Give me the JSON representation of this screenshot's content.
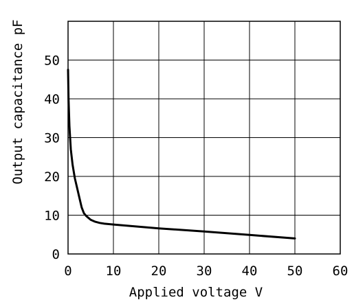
{
  "chart_data": {
    "type": "line",
    "title": "",
    "xlabel": "Applied voltage V",
    "ylabel": "Output capacitance pF",
    "xlim": [
      0,
      60
    ],
    "ylim": [
      0,
      60
    ],
    "grid": true,
    "legend": "none",
    "x_ticks": [
      "0",
      "10",
      "20",
      "30",
      "40",
      "50",
      "60"
    ],
    "y_ticks": [
      "0",
      "10",
      "20",
      "30",
      "40",
      "50"
    ],
    "series": [
      {
        "color": "#000000",
        "x": [
          0,
          0.1,
          0.3,
          0.6,
          1,
          1.5,
          2,
          2.5,
          3,
          3.5,
          4,
          5,
          6,
          7,
          8,
          10,
          20,
          30,
          40,
          50
        ],
        "y": [
          47.5,
          40,
          33,
          27,
          23,
          19.5,
          17,
          14.5,
          12,
          10.5,
          9.8,
          8.8,
          8.3,
          8.0,
          7.8,
          7.6,
          6.6,
          5.8,
          4.9,
          4.0
        ]
      }
    ]
  }
}
